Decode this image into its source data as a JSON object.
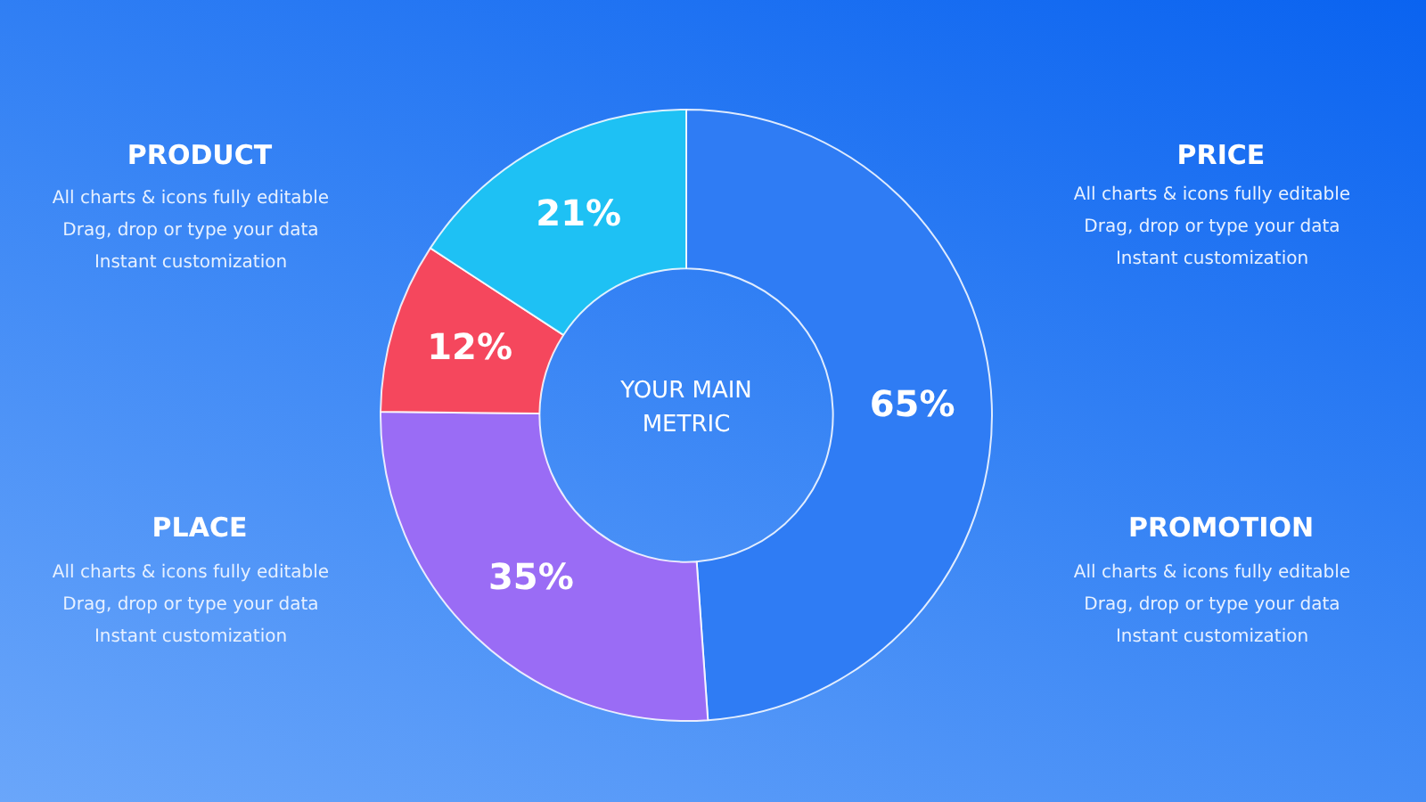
{
  "chart_data": {
    "type": "donut",
    "categories": [
      null,
      null,
      null,
      null
    ],
    "values": [
      65,
      35,
      12,
      21
    ],
    "colors": [
      "#2f7cf4",
      "#9a6cf5",
      "#f5475d",
      "#1ec1f4"
    ],
    "value_labels": [
      "65%",
      "35%",
      "12%",
      "21%"
    ],
    "legend": false,
    "annotations": [
      "YOUR MAIN METRIC",
      "PRODUCT",
      "All charts & icons fully editable Drag, drop or type your data Instant customization",
      "PRICE",
      "All charts & icons fully editable Drag, drop or type your data Instant customization",
      "PLACE",
      "All charts & icons fully editable Drag, drop or type your data Instant customization",
      "PROMOTION",
      "All charts & icons fully editable Drag, drop or type your data Instant customization"
    ]
  }
}
